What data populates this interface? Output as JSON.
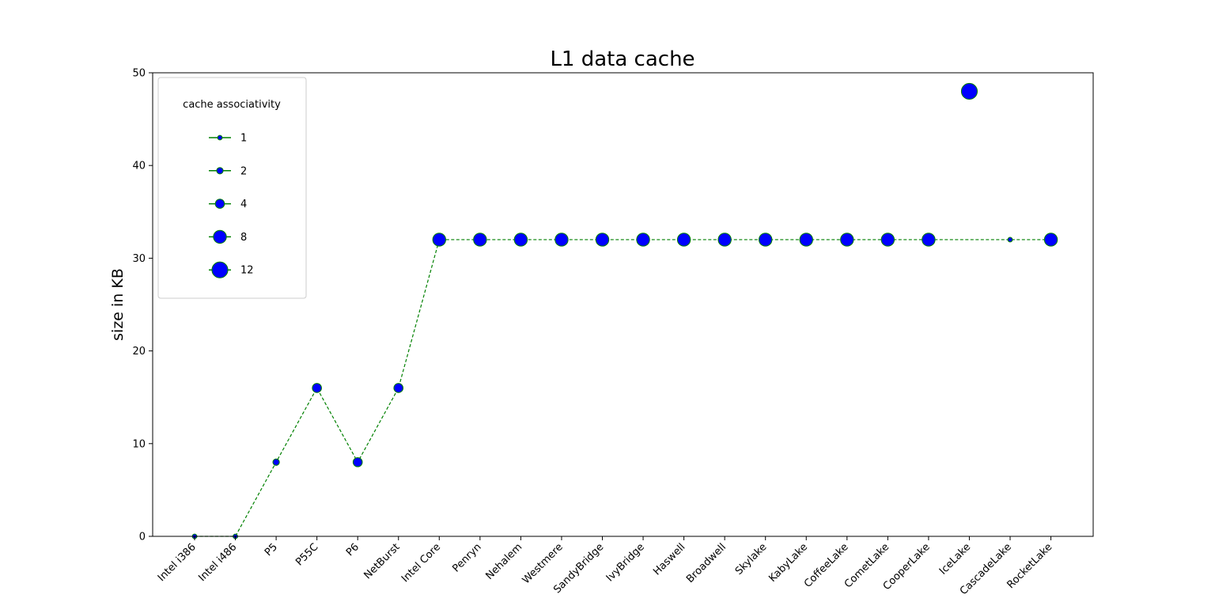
{
  "chart_data": {
    "type": "scatter",
    "title": "L1 data cache",
    "xlabel": "",
    "ylabel": "size in KB",
    "ylim": [
      0,
      50
    ],
    "yticks": [
      0,
      10,
      20,
      30,
      40,
      50
    ],
    "grid": false,
    "legend_placement": "top-left",
    "categories": [
      "Intel i386",
      "Intel i486",
      "P5",
      "P55C",
      "P6",
      "NetBurst",
      "Intel Core",
      "Penryn",
      "Nehalem",
      "Westmere",
      "SandyBridge",
      "IvyBridge",
      "Haswell",
      "Broadwell",
      "Skylake",
      "KabyLake",
      "CoffeeLake",
      "CometLake",
      "CooperLake",
      "IceLake",
      "CascadeLake",
      "RocketLake"
    ],
    "series": [
      {
        "values": [
          0,
          0,
          8,
          16,
          8,
          16,
          32,
          32,
          32,
          32,
          32,
          32,
          32,
          32,
          32,
          32,
          32,
          32,
          32,
          48,
          32,
          32
        ],
        "associativity": [
          1,
          1,
          2,
          4,
          4,
          4,
          8,
          8,
          8,
          8,
          8,
          8,
          8,
          8,
          8,
          8,
          8,
          8,
          8,
          12,
          1,
          8
        ],
        "line_values": [
          0,
          0,
          8,
          16,
          8,
          16,
          32,
          32,
          32,
          32,
          32,
          32,
          32,
          32,
          32,
          32,
          32,
          32,
          32,
          32,
          32,
          32
        ]
      }
    ],
    "legend": {
      "title": "cache associativity",
      "entries": [
        "1",
        "2",
        "4",
        "8",
        "12"
      ],
      "sizes": [
        1,
        2,
        4,
        8,
        12
      ]
    },
    "colors": {
      "marker_fill": "#0000ff",
      "marker_edge": "#008000",
      "line": "#008000"
    }
  }
}
